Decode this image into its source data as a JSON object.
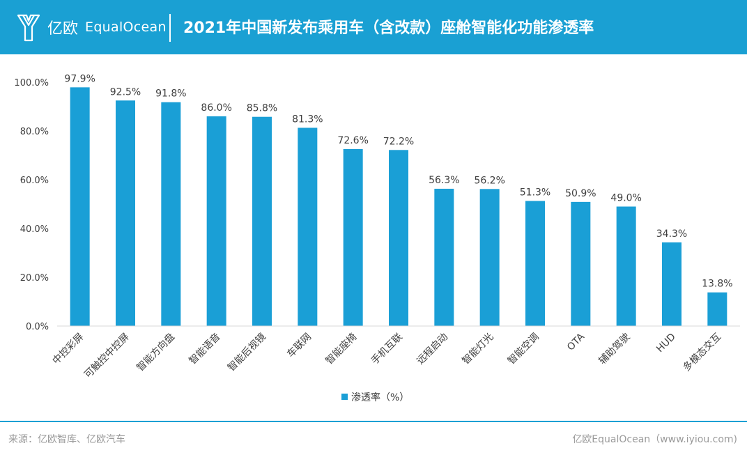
{
  "header": {
    "logo_cn": "亿欧",
    "logo_en": "EqualOcean",
    "title": "2021年中国新发布乘用车（含改款）座舱智能化功能渗透率"
  },
  "footer": {
    "source": "来源：亿欧智库、亿欧汽车",
    "brand": "亿欧EqualOcean（www.iyiou.com)"
  },
  "colors": {
    "brand": "#1aa0d3",
    "bar": "#1a9fd6"
  },
  "chart_data": {
    "type": "bar",
    "categories": [
      "中控彩屏",
      "可触控中控屏",
      "智能方向盘",
      "智能语音",
      "智能后视镜",
      "车联网",
      "智能座椅",
      "手机互联",
      "远程启动",
      "智能灯光",
      "智能空调",
      "OTA",
      "辅助驾驶",
      "HUD",
      "多模态交互"
    ],
    "series": [
      {
        "name": "渗透率（%）",
        "values": [
          97.9,
          92.5,
          91.8,
          86.0,
          85.8,
          81.3,
          72.6,
          72.2,
          56.3,
          56.2,
          51.3,
          50.9,
          49.0,
          34.3,
          13.8
        ]
      }
    ],
    "data_labels": [
      "97.9%",
      "92.5%",
      "91.8%",
      "86.0%",
      "85.8%",
      "81.3%",
      "72.6%",
      "72.2%",
      "56.3%",
      "56.2%",
      "51.3%",
      "50.9%",
      "49.0%",
      "34.3%",
      "13.8%"
    ],
    "y_ticks": [
      "0.0%",
      "20.0%",
      "40.0%",
      "60.0%",
      "80.0%",
      "100.0%"
    ],
    "ylim": [
      0,
      100
    ],
    "grid": false,
    "legend": "bottom-center",
    "x_tick_rotation_deg": -45
  }
}
